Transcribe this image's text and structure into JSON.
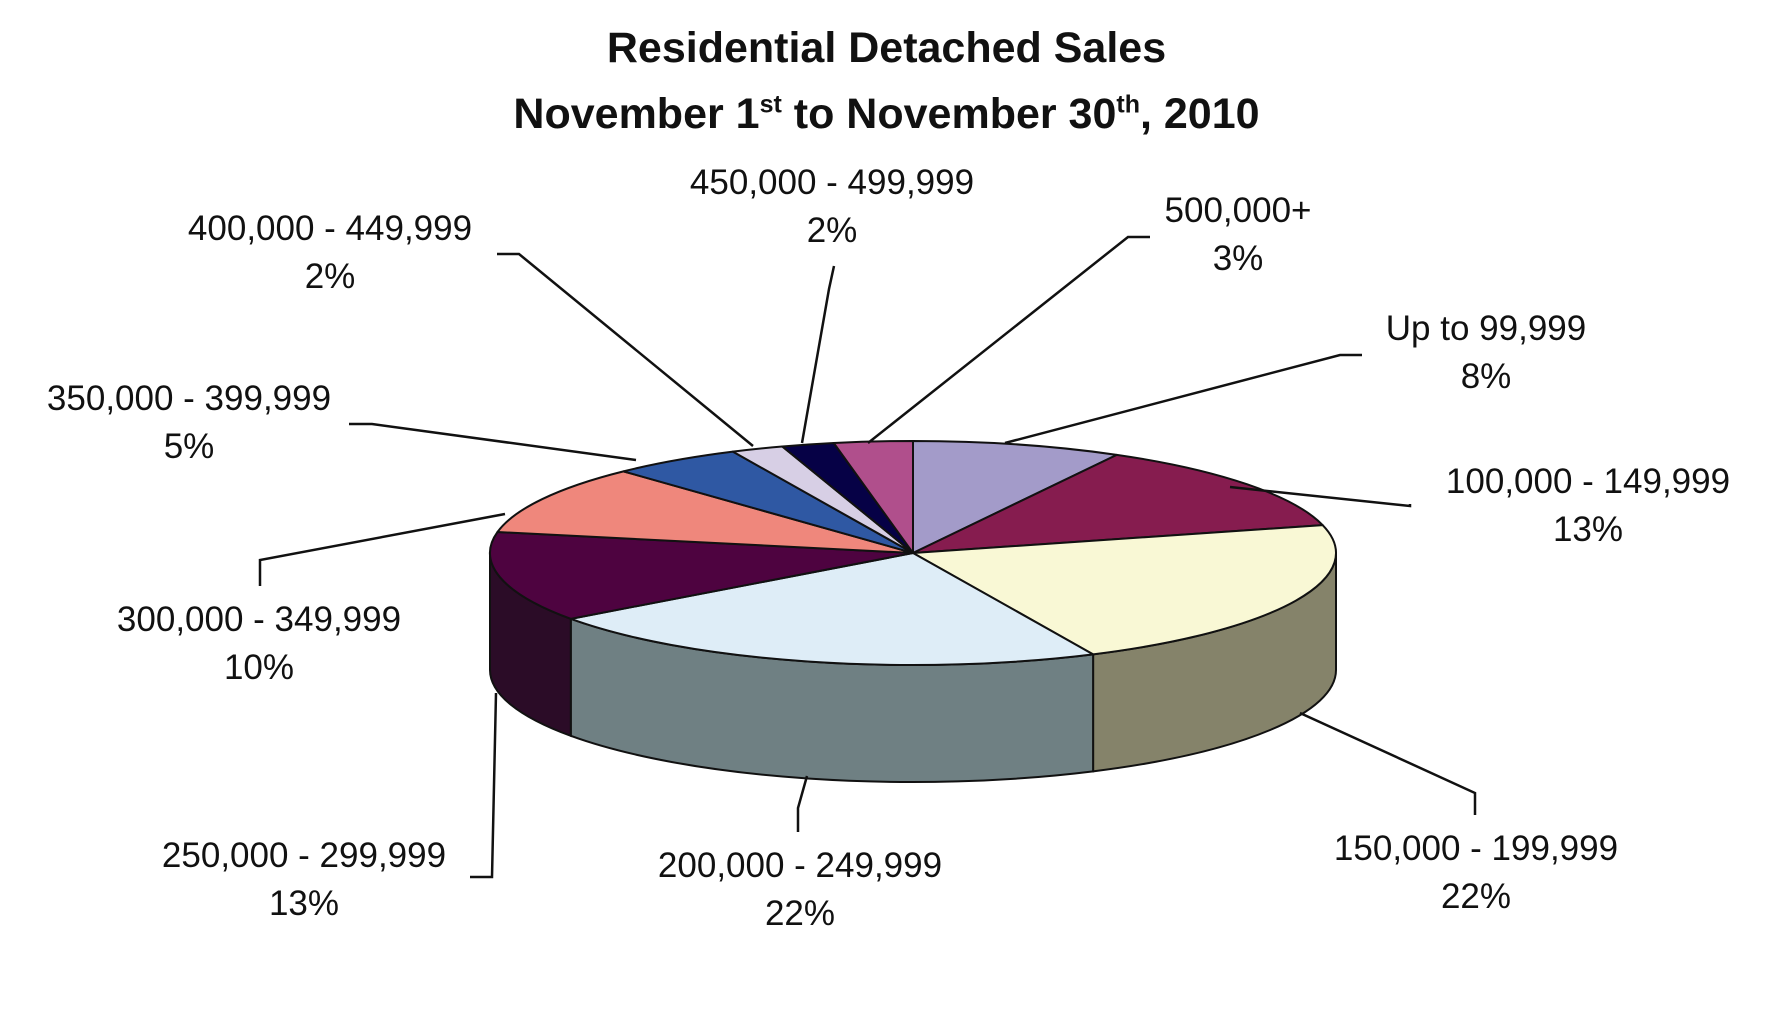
{
  "chart_data": {
    "type": "pie",
    "title": {
      "line1": "Residential Detached Sales",
      "line2_a": "November 1",
      "line2_sup1": "st",
      "line2_b": " to November 30",
      "line2_sup2": "th",
      "line2_c": ", 2010"
    },
    "style": "3d",
    "categories": [
      "Up to 99,999",
      "100,000 - 149,999",
      "150,000 - 199,999",
      "200,000 - 249,999",
      "250,000 - 299,999",
      "300,000 - 349,999",
      "350,000 - 399,999",
      "400,000 - 449,999",
      "450,000 - 499,999",
      "500,000+"
    ],
    "values": [
      8,
      13,
      22,
      22,
      13,
      10,
      5,
      2,
      2,
      3
    ],
    "value_labels": [
      "8%",
      "13%",
      "22%",
      "22%",
      "13%",
      "10%",
      "5%",
      "2%",
      "2%",
      "3%"
    ],
    "colors": [
      "#A39BC9",
      "#861C4F",
      "#F9F8D5",
      "#DEEDF7",
      "#4E0340",
      "#EF877C",
      "#2F58A3",
      "#D7CFE5",
      "#060146",
      "#B04F8C"
    ],
    "side_colors": [
      "#7C7590",
      "#5E1337",
      "#85836A",
      "#6F8083",
      "#2B0C27",
      "#A55E56",
      "#203D72",
      "#9690A0",
      "#040131",
      "#7B3762"
    ]
  }
}
